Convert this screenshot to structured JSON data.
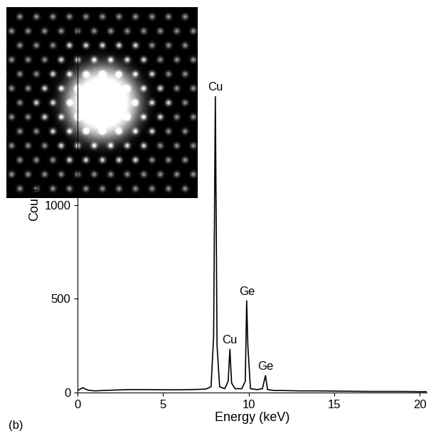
{
  "chart_data": {
    "type": "line",
    "panel_label": "(b)",
    "x_label": "Energy (keV)",
    "y_label": "Counts",
    "x": [
      0,
      0.3,
      0.6,
      1.0,
      1.5,
      2,
      3,
      4,
      5,
      6,
      7,
      7.5,
      7.8,
      7.95,
      8.05,
      8.15,
      8.3,
      8.6,
      8.8,
      8.9,
      9.0,
      9.2,
      9.6,
      9.8,
      9.88,
      9.95,
      10.1,
      10.5,
      10.8,
      10.98,
      11.1,
      11.5,
      12,
      13,
      14,
      15,
      16,
      17,
      18,
      19,
      20,
      20.4
    ],
    "values": [
      10,
      25,
      12,
      8,
      10,
      12,
      15,
      15,
      14,
      14,
      16,
      18,
      30,
      300,
      1580,
      250,
      30,
      20,
      60,
      230,
      50,
      20,
      20,
      60,
      490,
      250,
      20,
      15,
      20,
      90,
      15,
      10,
      10,
      8,
      8,
      7,
      6,
      5,
      5,
      5,
      4,
      4
    ],
    "color": "#000000",
    "annotations": [
      {
        "text": "Cu",
        "x": 8.05,
        "y": 1580
      },
      {
        "text": "Cu",
        "x": 8.9,
        "y": 230
      },
      {
        "text": "Ge",
        "x": 9.88,
        "y": 490
      },
      {
        "text": "Ge",
        "x": 10.98,
        "y": 90
      }
    ],
    "xlim": [
      0,
      20.4
    ],
    "ylim": [
      0,
      2050
    ],
    "xticks": [
      0,
      5,
      10,
      15,
      20
    ],
    "yticks": [
      0,
      500,
      1000
    ],
    "grid": false
  }
}
